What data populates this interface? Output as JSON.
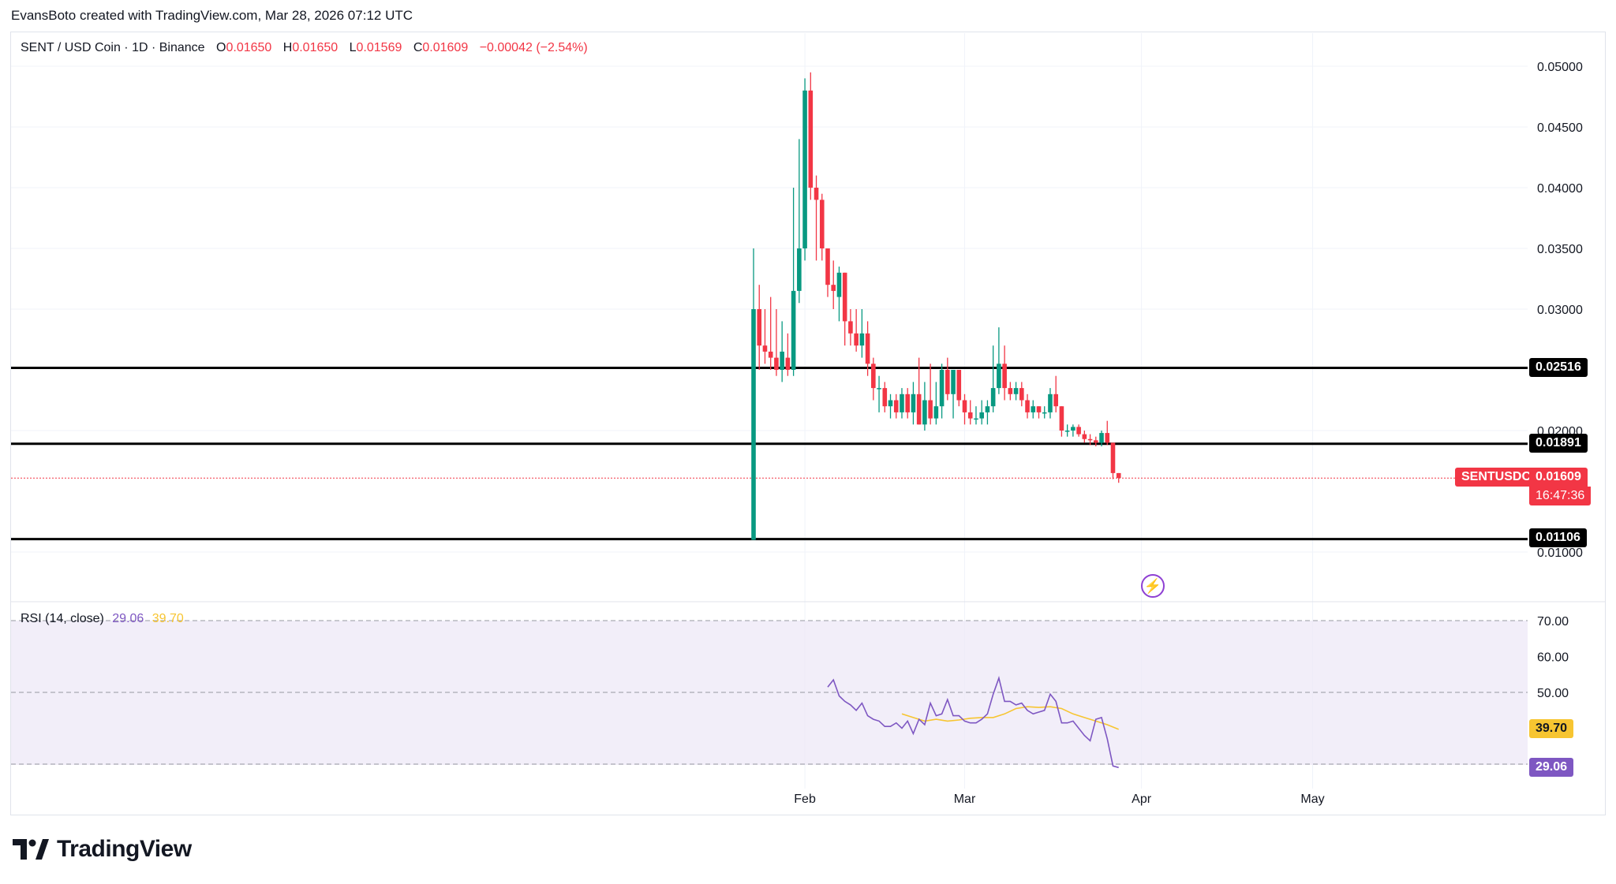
{
  "header": {
    "credit": "EvansBoto created with TradingView.com, Mar 28, 2026 07:12 UTC"
  },
  "legend": {
    "symbol": "SENT / USD Coin · 1D · Binance",
    "o_label": "O",
    "o": "0.01650",
    "h_label": "H",
    "h": "0.01650",
    "l_label": "L",
    "l": "0.01569",
    "c_label": "C",
    "c": "0.01609",
    "change": "−0.00042 (−2.54%)"
  },
  "rsi_legend": {
    "name": "RSI (14, close)",
    "rsi": "29.06",
    "ma": "39.70"
  },
  "price_scale": [
    "0.05000",
    "0.04500",
    "0.04000",
    "0.03500",
    "0.03000",
    "0.02000",
    "0.01000"
  ],
  "rsi_scale": [
    "70.00",
    "60.00",
    "50.00"
  ],
  "time_labels": [
    "Feb",
    "Mar",
    "Apr",
    "May"
  ],
  "tags": {
    "level_1": "0.02516",
    "level_2": "0.01891",
    "level_3": "0.01106",
    "symbol": "SENTUSDC",
    "last": "0.01609",
    "countdown": "16:47:36",
    "rsi_ma": "39.70",
    "rsi": "29.06"
  },
  "logo": {
    "text": "TradingView"
  },
  "colors": {
    "up": "#089981",
    "down": "#f23645",
    "rsi": "#7e57c2",
    "rsi_ma": "#f7c531",
    "rsi_band": "#ede7f6",
    "level": "#000000"
  },
  "chart_data": {
    "type": "candlestick",
    "timeframe": "1D",
    "x_range": [
      "2026-01-23",
      "2026-05-31"
    ],
    "ylim": [
      0.0065,
      0.0535
    ],
    "horizontal_levels": [
      0.02516,
      0.01891,
      0.01106
    ],
    "last_price": 0.01609,
    "candles": [
      {
        "date": "2026-01-23",
        "o": 0.011,
        "h": 0.035,
        "l": 0.011,
        "c": 0.03
      },
      {
        "date": "2026-01-24",
        "o": 0.03,
        "h": 0.032,
        "l": 0.025,
        "c": 0.027
      },
      {
        "date": "2026-01-25",
        "o": 0.027,
        "h": 0.03,
        "l": 0.0255,
        "c": 0.0265
      },
      {
        "date": "2026-01-26",
        "o": 0.0265,
        "h": 0.031,
        "l": 0.025,
        "c": 0.026
      },
      {
        "date": "2026-01-27",
        "o": 0.026,
        "h": 0.03,
        "l": 0.0245,
        "c": 0.025
      },
      {
        "date": "2026-01-28",
        "o": 0.025,
        "h": 0.029,
        "l": 0.024,
        "c": 0.0265
      },
      {
        "date": "2026-01-29",
        "o": 0.026,
        "h": 0.028,
        "l": 0.0245,
        "c": 0.025
      },
      {
        "date": "2026-01-30",
        "o": 0.025,
        "h": 0.04,
        "l": 0.0245,
        "c": 0.0315
      },
      {
        "date": "2026-01-31",
        "o": 0.0315,
        "h": 0.044,
        "l": 0.0305,
        "c": 0.035
      },
      {
        "date": "2026-02-01",
        "o": 0.035,
        "h": 0.049,
        "l": 0.034,
        "c": 0.048
      },
      {
        "date": "2026-02-02",
        "o": 0.048,
        "h": 0.0495,
        "l": 0.039,
        "c": 0.04
      },
      {
        "date": "2026-02-03",
        "o": 0.04,
        "h": 0.041,
        "l": 0.034,
        "c": 0.039
      },
      {
        "date": "2026-02-04",
        "o": 0.039,
        "h": 0.0395,
        "l": 0.034,
        "c": 0.035
      },
      {
        "date": "2026-02-05",
        "o": 0.035,
        "h": 0.035,
        "l": 0.031,
        "c": 0.032
      },
      {
        "date": "2026-02-06",
        "o": 0.032,
        "h": 0.034,
        "l": 0.03,
        "c": 0.0315
      },
      {
        "date": "2026-02-07",
        "o": 0.031,
        "h": 0.0335,
        "l": 0.029,
        "c": 0.033
      },
      {
        "date": "2026-02-08",
        "o": 0.033,
        "h": 0.033,
        "l": 0.027,
        "c": 0.029
      },
      {
        "date": "2026-02-09",
        "o": 0.029,
        "h": 0.03,
        "l": 0.027,
        "c": 0.028
      },
      {
        "date": "2026-02-10",
        "o": 0.028,
        "h": 0.03,
        "l": 0.0265,
        "c": 0.027
      },
      {
        "date": "2026-02-11",
        "o": 0.027,
        "h": 0.03,
        "l": 0.026,
        "c": 0.028
      },
      {
        "date": "2026-02-12",
        "o": 0.028,
        "h": 0.029,
        "l": 0.0245,
        "c": 0.0255
      },
      {
        "date": "2026-02-13",
        "o": 0.0255,
        "h": 0.026,
        "l": 0.0225,
        "c": 0.0235
      },
      {
        "date": "2026-02-14",
        "o": 0.0235,
        "h": 0.0245,
        "l": 0.0215,
        "c": 0.0235
      },
      {
        "date": "2026-02-15",
        "o": 0.0235,
        "h": 0.024,
        "l": 0.0215,
        "c": 0.022
      },
      {
        "date": "2026-02-16",
        "o": 0.022,
        "h": 0.023,
        "l": 0.021,
        "c": 0.0225
      },
      {
        "date": "2026-02-17",
        "o": 0.0225,
        "h": 0.023,
        "l": 0.021,
        "c": 0.0215
      },
      {
        "date": "2026-02-18",
        "o": 0.0215,
        "h": 0.0235,
        "l": 0.021,
        "c": 0.023
      },
      {
        "date": "2026-02-19",
        "o": 0.023,
        "h": 0.0235,
        "l": 0.021,
        "c": 0.0215
      },
      {
        "date": "2026-02-20",
        "o": 0.0215,
        "h": 0.024,
        "l": 0.0205,
        "c": 0.023
      },
      {
        "date": "2026-02-21",
        "o": 0.023,
        "h": 0.026,
        "l": 0.0205,
        "c": 0.0205
      },
      {
        "date": "2026-02-22",
        "o": 0.0205,
        "h": 0.024,
        "l": 0.02,
        "c": 0.0225
      },
      {
        "date": "2026-02-23",
        "o": 0.0225,
        "h": 0.0255,
        "l": 0.0205,
        "c": 0.021
      },
      {
        "date": "2026-02-24",
        "o": 0.021,
        "h": 0.024,
        "l": 0.0205,
        "c": 0.022
      },
      {
        "date": "2026-02-25",
        "o": 0.022,
        "h": 0.0255,
        "l": 0.021,
        "c": 0.025
      },
      {
        "date": "2026-02-26",
        "o": 0.025,
        "h": 0.026,
        "l": 0.0225,
        "c": 0.023
      },
      {
        "date": "2026-02-27",
        "o": 0.023,
        "h": 0.025,
        "l": 0.021,
        "c": 0.025
      },
      {
        "date": "2026-02-28",
        "o": 0.025,
        "h": 0.025,
        "l": 0.022,
        "c": 0.0225
      },
      {
        "date": "2026-03-01",
        "o": 0.0225,
        "h": 0.023,
        "l": 0.0205,
        "c": 0.0215
      },
      {
        "date": "2026-03-02",
        "o": 0.0215,
        "h": 0.0225,
        "l": 0.0205,
        "c": 0.021
      },
      {
        "date": "2026-03-03",
        "o": 0.021,
        "h": 0.022,
        "l": 0.0205,
        "c": 0.021
      },
      {
        "date": "2026-03-04",
        "o": 0.021,
        "h": 0.0225,
        "l": 0.0205,
        "c": 0.0215
      },
      {
        "date": "2026-03-05",
        "o": 0.0215,
        "h": 0.0225,
        "l": 0.0205,
        "c": 0.022
      },
      {
        "date": "2026-03-06",
        "o": 0.022,
        "h": 0.027,
        "l": 0.0215,
        "c": 0.0235
      },
      {
        "date": "2026-03-07",
        "o": 0.0235,
        "h": 0.0285,
        "l": 0.023,
        "c": 0.0255
      },
      {
        "date": "2026-03-08",
        "o": 0.0255,
        "h": 0.027,
        "l": 0.0225,
        "c": 0.0235
      },
      {
        "date": "2026-03-09",
        "o": 0.0235,
        "h": 0.024,
        "l": 0.0225,
        "c": 0.023
      },
      {
        "date": "2026-03-10",
        "o": 0.023,
        "h": 0.024,
        "l": 0.0225,
        "c": 0.0235
      },
      {
        "date": "2026-03-11",
        "o": 0.0235,
        "h": 0.024,
        "l": 0.022,
        "c": 0.0225
      },
      {
        "date": "2026-03-12",
        "o": 0.0225,
        "h": 0.023,
        "l": 0.021,
        "c": 0.0215
      },
      {
        "date": "2026-03-13",
        "o": 0.0215,
        "h": 0.0225,
        "l": 0.021,
        "c": 0.022
      },
      {
        "date": "2026-03-14",
        "o": 0.022,
        "h": 0.022,
        "l": 0.021,
        "c": 0.0215
      },
      {
        "date": "2026-03-15",
        "o": 0.0215,
        "h": 0.022,
        "l": 0.021,
        "c": 0.0215
      },
      {
        "date": "2026-03-16",
        "o": 0.0215,
        "h": 0.0235,
        "l": 0.021,
        "c": 0.023
      },
      {
        "date": "2026-03-17",
        "o": 0.023,
        "h": 0.0245,
        "l": 0.0215,
        "c": 0.022
      },
      {
        "date": "2026-03-18",
        "o": 0.022,
        "h": 0.022,
        "l": 0.0195,
        "c": 0.02
      },
      {
        "date": "2026-03-19",
        "o": 0.02,
        "h": 0.0205,
        "l": 0.0195,
        "c": 0.02
      },
      {
        "date": "2026-03-20",
        "o": 0.02,
        "h": 0.0205,
        "l": 0.0195,
        "c": 0.0203
      },
      {
        "date": "2026-03-21",
        "o": 0.0203,
        "h": 0.0205,
        "l": 0.0195,
        "c": 0.0197
      },
      {
        "date": "2026-03-22",
        "o": 0.0197,
        "h": 0.02,
        "l": 0.019,
        "c": 0.0193
      },
      {
        "date": "2026-03-23",
        "o": 0.0193,
        "h": 0.0197,
        "l": 0.0188,
        "c": 0.0192
      },
      {
        "date": "2026-03-24",
        "o": 0.0192,
        "h": 0.0195,
        "l": 0.0187,
        "c": 0.019
      },
      {
        "date": "2026-03-25",
        "o": 0.019,
        "h": 0.02,
        "l": 0.0187,
        "c": 0.0198
      },
      {
        "date": "2026-03-26",
        "o": 0.0198,
        "h": 0.0208,
        "l": 0.0188,
        "c": 0.019
      },
      {
        "date": "2026-03-27",
        "o": 0.019,
        "h": 0.019,
        "l": 0.016,
        "c": 0.0165
      },
      {
        "date": "2026-03-28",
        "o": 0.0165,
        "h": 0.0165,
        "l": 0.0157,
        "c": 0.0161
      }
    ],
    "rsi": {
      "name": "RSI (14, close)",
      "ylim": [
        24,
        78
      ],
      "bands": [
        70,
        50,
        30
      ],
      "values": [
        {
          "date": "2026-02-05",
          "v": 51.5
        },
        {
          "date": "2026-02-06",
          "v": 53.5
        },
        {
          "date": "2026-02-07",
          "v": 49.0
        },
        {
          "date": "2026-02-08",
          "v": 47.5
        },
        {
          "date": "2026-02-09",
          "v": 46.5
        },
        {
          "date": "2026-02-10",
          "v": 45.0
        },
        {
          "date": "2026-02-11",
          "v": 47.0
        },
        {
          "date": "2026-02-12",
          "v": 43.5
        },
        {
          "date": "2026-02-13",
          "v": 42.5
        },
        {
          "date": "2026-02-14",
          "v": 42.0
        },
        {
          "date": "2026-02-15",
          "v": 40.5
        },
        {
          "date": "2026-02-16",
          "v": 40.5
        },
        {
          "date": "2026-02-17",
          "v": 41.5
        },
        {
          "date": "2026-02-18",
          "v": 40.0
        },
        {
          "date": "2026-02-19",
          "v": 42.0
        },
        {
          "date": "2026-02-20",
          "v": 38.5
        },
        {
          "date": "2026-02-21",
          "v": 42.5
        },
        {
          "date": "2026-02-22",
          "v": 41.0
        },
        {
          "date": "2026-02-23",
          "v": 47.0
        },
        {
          "date": "2026-02-24",
          "v": 43.5
        },
        {
          "date": "2026-02-25",
          "v": 44.0
        },
        {
          "date": "2026-02-26",
          "v": 48.0
        },
        {
          "date": "2026-02-27",
          "v": 43.5
        },
        {
          "date": "2026-02-28",
          "v": 43.5
        },
        {
          "date": "2026-03-01",
          "v": 42.0
        },
        {
          "date": "2026-03-02",
          "v": 41.5
        },
        {
          "date": "2026-03-03",
          "v": 41.5
        },
        {
          "date": "2026-03-04",
          "v": 42.5
        },
        {
          "date": "2026-03-05",
          "v": 44.0
        },
        {
          "date": "2026-03-06",
          "v": 49.5
        },
        {
          "date": "2026-03-07",
          "v": 54.0
        },
        {
          "date": "2026-03-08",
          "v": 47.5
        },
        {
          "date": "2026-03-09",
          "v": 47.5
        },
        {
          "date": "2026-03-10",
          "v": 46.5
        },
        {
          "date": "2026-03-11",
          "v": 47.0
        },
        {
          "date": "2026-03-12",
          "v": 45.0
        },
        {
          "date": "2026-03-13",
          "v": 44.0
        },
        {
          "date": "2026-03-14",
          "v": 44.5
        },
        {
          "date": "2026-03-15",
          "v": 45.0
        },
        {
          "date": "2026-03-16",
          "v": 49.5
        },
        {
          "date": "2026-03-17",
          "v": 47.5
        },
        {
          "date": "2026-03-18",
          "v": 41.5
        },
        {
          "date": "2026-03-19",
          "v": 41.5
        },
        {
          "date": "2026-03-20",
          "v": 42.0
        },
        {
          "date": "2026-03-21",
          "v": 40.0
        },
        {
          "date": "2026-03-22",
          "v": 38.0
        },
        {
          "date": "2026-03-23",
          "v": 36.5
        },
        {
          "date": "2026-03-24",
          "v": 42.5
        },
        {
          "date": "2026-03-25",
          "v": 43.0
        },
        {
          "date": "2026-03-26",
          "v": 37.0
        },
        {
          "date": "2026-03-27",
          "v": 29.5
        },
        {
          "date": "2026-03-28",
          "v": 29.06
        }
      ],
      "ma": [
        {
          "date": "2026-02-18",
          "v": 44.0
        },
        {
          "date": "2026-02-20",
          "v": 43.0
        },
        {
          "date": "2026-02-22",
          "v": 42.0
        },
        {
          "date": "2026-02-24",
          "v": 42.5
        },
        {
          "date": "2026-02-26",
          "v": 42.0
        },
        {
          "date": "2026-02-28",
          "v": 42.3
        },
        {
          "date": "2026-03-02",
          "v": 42.8
        },
        {
          "date": "2026-03-04",
          "v": 43.0
        },
        {
          "date": "2026-03-06",
          "v": 43.0
        },
        {
          "date": "2026-03-08",
          "v": 44.0
        },
        {
          "date": "2026-03-10",
          "v": 45.5
        },
        {
          "date": "2026-03-12",
          "v": 46.0
        },
        {
          "date": "2026-03-14",
          "v": 45.8
        },
        {
          "date": "2026-03-16",
          "v": 46.0
        },
        {
          "date": "2026-03-18",
          "v": 45.5
        },
        {
          "date": "2026-03-20",
          "v": 44.0
        },
        {
          "date": "2026-03-22",
          "v": 43.0
        },
        {
          "date": "2026-03-24",
          "v": 42.0
        },
        {
          "date": "2026-03-26",
          "v": 41.0
        },
        {
          "date": "2026-03-28",
          "v": 39.7
        }
      ]
    }
  }
}
